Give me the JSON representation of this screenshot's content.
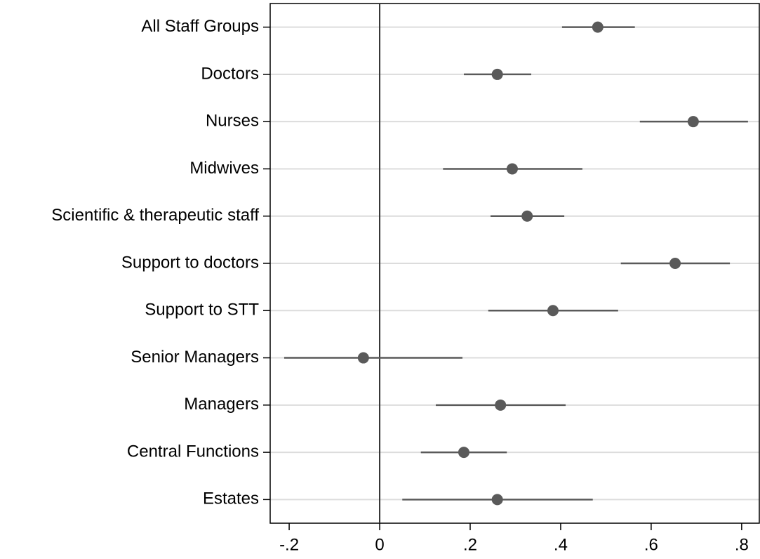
{
  "chart_data": {
    "type": "coefplot",
    "categories": [
      "All Staff Groups",
      "Doctors",
      "Nurses",
      "Midwives",
      "Scientific & therapeutic staff",
      "Support to doctors",
      "Support to STT",
      "Senior Managers",
      "Managers",
      "Central Functions",
      "Estates"
    ],
    "values": [
      0.482,
      0.26,
      0.693,
      0.293,
      0.326,
      0.653,
      0.383,
      -0.036,
      0.267,
      0.186,
      0.26
    ],
    "ci_low": [
      0.403,
      0.186,
      0.575,
      0.14,
      0.245,
      0.533,
      0.24,
      -0.211,
      0.124,
      0.091,
      0.05
    ],
    "ci_high": [
      0.564,
      0.335,
      0.814,
      0.448,
      0.408,
      0.774,
      0.527,
      0.183,
      0.411,
      0.281,
      0.471
    ],
    "color": "#5a5a5a",
    "xlim": [
      -0.242,
      0.839
    ],
    "xticks": [
      {
        "value": -0.2,
        "label": "-.2"
      },
      0,
      {
        "value": 0.2,
        "label": ".2"
      },
      {
        "value": 0.4,
        "label": ".4"
      },
      {
        "value": 0.6,
        "label": ".6"
      },
      {
        "value": 0.8,
        "label": ".8"
      }
    ],
    "xline": 0,
    "grid": true
  }
}
